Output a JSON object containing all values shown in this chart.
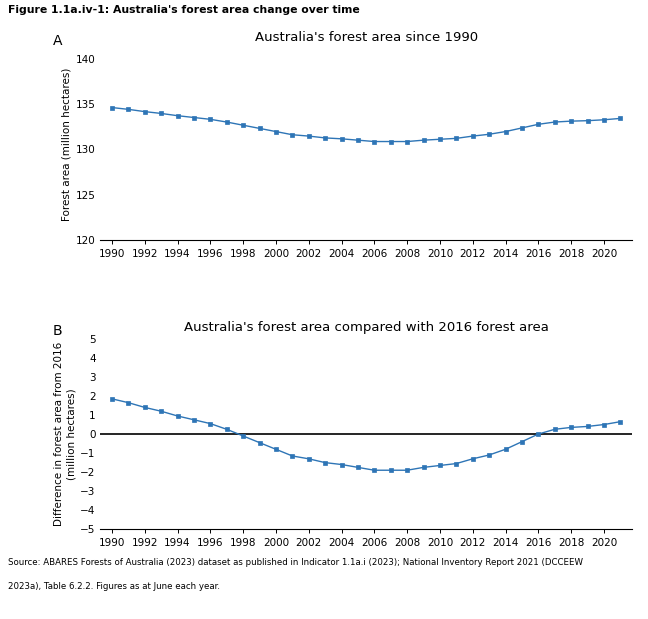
{
  "title": "Figure 1.1a.iv-1: Australia's forest area change over time",
  "panel_A_title": "Australia's forest area since 1990",
  "panel_B_title": "Australia's forest area compared with 2016 forest area",
  "years": [
    1990,
    1991,
    1992,
    1993,
    1994,
    1995,
    1996,
    1997,
    1998,
    1999,
    2000,
    2001,
    2002,
    2003,
    2004,
    2005,
    2006,
    2007,
    2008,
    2009,
    2010,
    2011,
    2012,
    2013,
    2014,
    2015,
    2016,
    2017,
    2018,
    2019,
    2020,
    2021
  ],
  "forest_area": [
    134.6,
    134.4,
    134.15,
    133.95,
    133.7,
    133.5,
    133.3,
    133.0,
    132.65,
    132.3,
    131.95,
    131.6,
    131.45,
    131.25,
    131.15,
    131.0,
    130.85,
    130.85,
    130.85,
    131.0,
    131.1,
    131.2,
    131.45,
    131.65,
    131.95,
    132.35,
    132.75,
    133.0,
    133.1,
    133.15,
    133.25,
    133.4
  ],
  "diff_from_2016": [
    1.85,
    1.65,
    1.4,
    1.2,
    0.95,
    0.75,
    0.55,
    0.25,
    -0.1,
    -0.45,
    -0.8,
    -1.15,
    -1.3,
    -1.5,
    -1.6,
    -1.75,
    -1.9,
    -1.9,
    -1.9,
    -1.75,
    -1.65,
    -1.55,
    -1.3,
    -1.1,
    -0.8,
    -0.4,
    0.0,
    0.25,
    0.35,
    0.4,
    0.5,
    0.65
  ],
  "ylabel_A": "Forest area (million hectares)",
  "ylabel_B": "Difference in forest area from 2016\n(million hectares)",
  "ylim_A": [
    120,
    141
  ],
  "ylim_B": [
    -5,
    5
  ],
  "yticks_A": [
    120,
    125,
    130,
    135,
    140
  ],
  "yticks_B": [
    -5,
    -4,
    -3,
    -2,
    -1,
    0,
    1,
    2,
    3,
    4,
    5
  ],
  "line_color": "#2E75B6",
  "marker": "s",
  "marker_size": 3.5,
  "source_line1": "Source: ABARES Forests of Australia (2023) dataset as published in Indicator 1.1a.i (2023); National Inventory Report 2021 (DCCEEW",
  "source_line2": "2023a), Table 6.2.2. Figures as at June each year.",
  "figure_bg": "#ffffff"
}
